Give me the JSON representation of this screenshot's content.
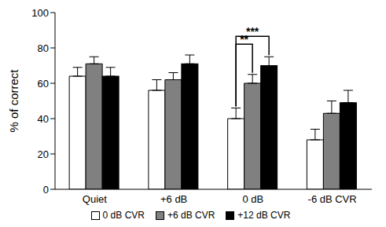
{
  "chart_data": {
    "type": "bar",
    "y_label": "% of correct",
    "categories": [
      "Quiet",
      "+6 dB",
      "0 dB",
      "-6 dB CVR"
    ],
    "series": [
      {
        "name": "0 dB CVR",
        "color": "#ffffff",
        "values": [
          64,
          56,
          40,
          28
        ],
        "errors": [
          5,
          6,
          6,
          6
        ]
      },
      {
        "name": "+6 dB CVR",
        "color": "#808080",
        "values": [
          71,
          62,
          60,
          43
        ],
        "errors": [
          4,
          4,
          5,
          7
        ]
      },
      {
        "name": "+12 dB CVR",
        "color": "#000000",
        "values": [
          64,
          71,
          70,
          49
        ],
        "errors": [
          5,
          5,
          5,
          7
        ]
      }
    ],
    "ylim": [
      0,
      100
    ],
    "yticks": [
      0,
      20,
      40,
      60,
      80,
      100
    ],
    "grid": false,
    "legend": "bottom",
    "annotations": [
      {
        "text": "**",
        "category": "0 dB",
        "between": [
          "0 dB CVR",
          "+6 dB CVR"
        ]
      },
      {
        "text": "***",
        "category": "0 dB",
        "between": [
          "0 dB CVR",
          "+12 dB CVR"
        ]
      }
    ]
  }
}
